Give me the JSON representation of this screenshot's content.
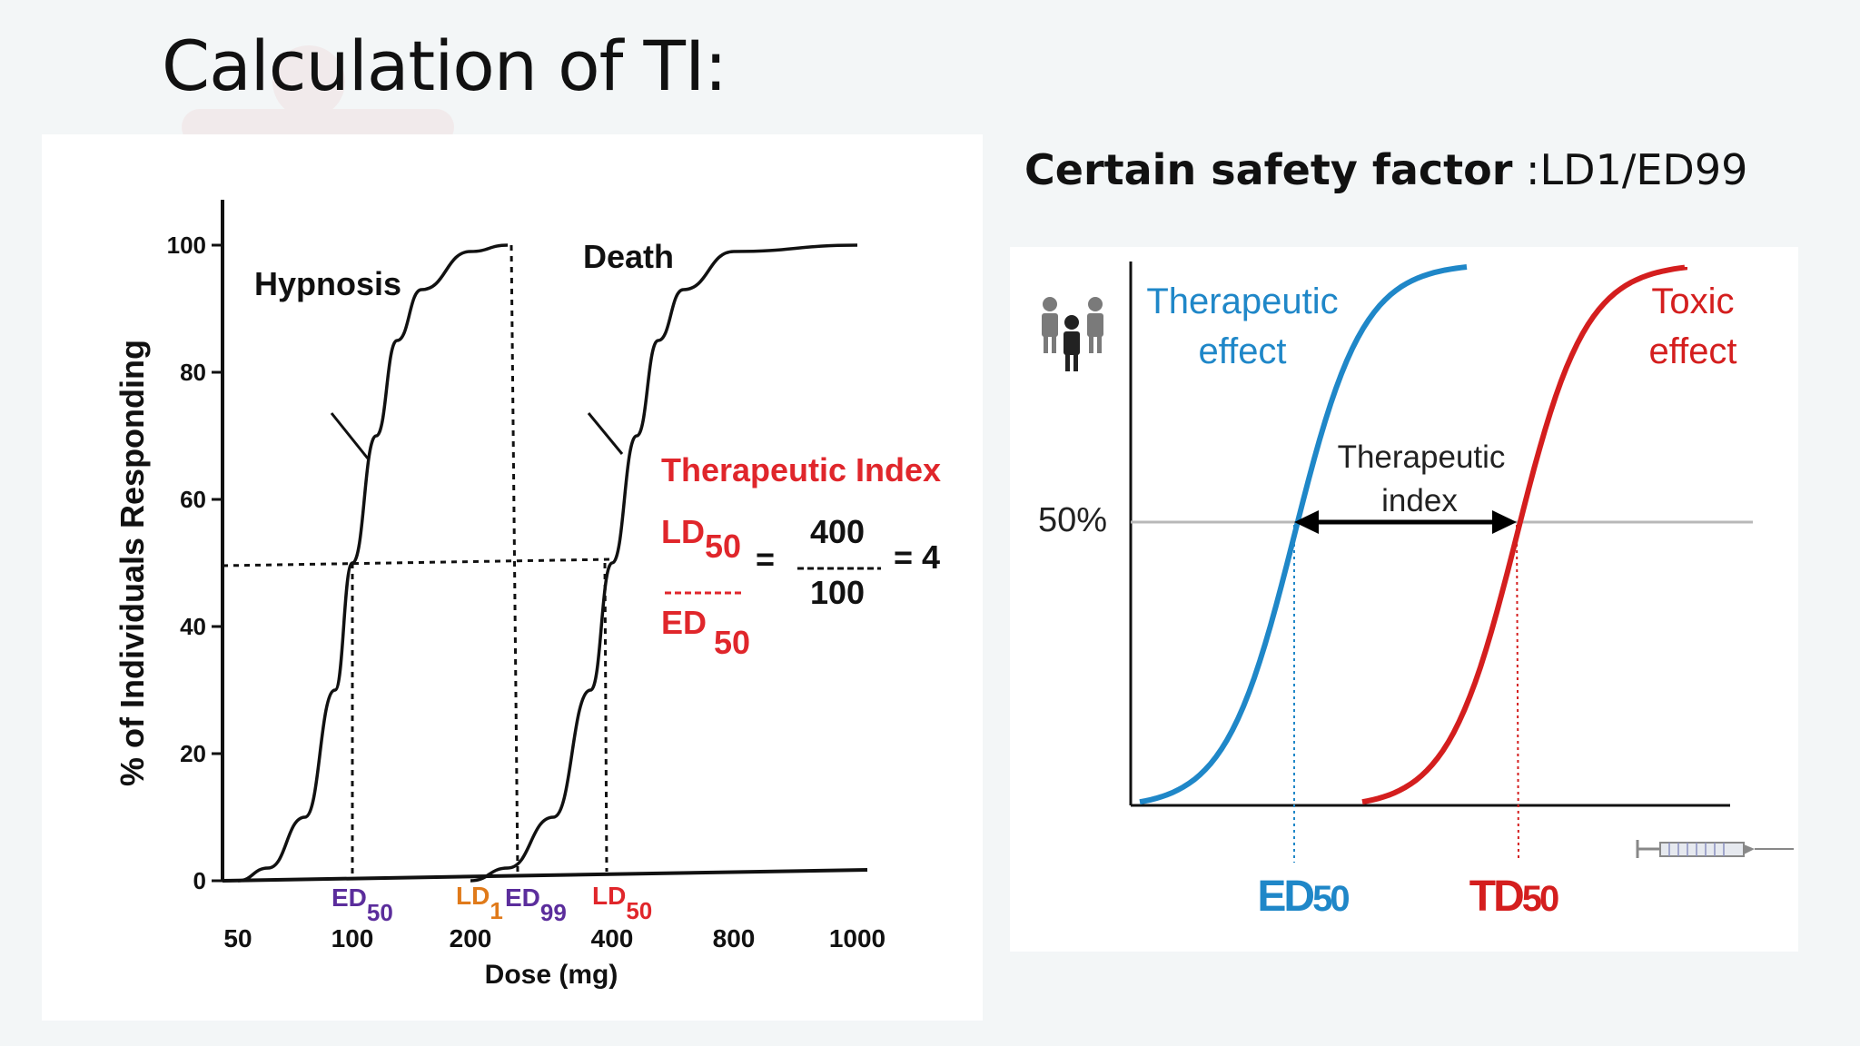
{
  "slide": {
    "title": "Calculation of TI:",
    "safety_label": "Certain safety factor",
    "safety_value": " :LD1/ED99"
  },
  "colors": {
    "therapeutic_blue": "#1f87c8",
    "toxic_red": "#d41e1e",
    "ti_red": "#e0262b",
    "ed_purple": "#5b2d9c",
    "ld_orange": "#e07a1a",
    "axis_black": "#111111"
  },
  "chart_data": [
    {
      "type": "line",
      "title": "",
      "xlabel": "Dose (mg)",
      "ylabel": "% of Individuals Responding",
      "x_scale": "log",
      "x_ticks": [
        "50",
        "100",
        "200",
        "400",
        "800",
        "1000"
      ],
      "y_ticks": [
        "0",
        "20",
        "40",
        "60",
        "80",
        "100"
      ],
      "ylim": [
        0,
        100
      ],
      "series": [
        {
          "name": "Hypnosis",
          "points": [
            [
              50,
              0
            ],
            [
              60,
              2
            ],
            [
              75,
              10
            ],
            [
              90,
              30
            ],
            [
              100,
              50
            ],
            [
              115,
              70
            ],
            [
              130,
              85
            ],
            [
              150,
              93
            ],
            [
              200,
              99
            ],
            [
              240,
              100
            ]
          ]
        },
        {
          "name": "Death",
          "points": [
            [
              200,
              0
            ],
            [
              240,
              2
            ],
            [
              300,
              10
            ],
            [
              360,
              30
            ],
            [
              400,
              50
            ],
            [
              460,
              70
            ],
            [
              520,
              85
            ],
            [
              600,
              93
            ],
            [
              800,
              99
            ],
            [
              1000,
              100
            ]
          ]
        }
      ],
      "reference_line": {
        "y": 50,
        "style": "dashed"
      },
      "annotations": [
        {
          "label": "ED",
          "sub": "50",
          "x": 100
        },
        {
          "label": "LD",
          "sub": "1",
          "x": 235
        },
        {
          "label": "ED",
          "sub": "99",
          "x": 235
        },
        {
          "label": "LD",
          "sub": "50",
          "x": 400
        }
      ],
      "formula": {
        "title": "Therapeutic Index",
        "num_label": "LD",
        "num_sub": "50",
        "den_label": "ED",
        "den_sub": "50",
        "num_value": "400",
        "den_value": "100",
        "result": "= 4",
        "eq": "="
      }
    },
    {
      "type": "line",
      "title": "",
      "series": [
        {
          "name": "Therapeutic effect",
          "line1": "Therapeutic",
          "line2": "effect",
          "color": "#1f87c8"
        },
        {
          "name": "Toxic effect",
          "line1": "Toxic",
          "line2": "effect",
          "color": "#d41e1e"
        }
      ],
      "reference_line": {
        "label": "50%"
      },
      "arrow_label_1": "Therapeutic",
      "arrow_label_2": "index",
      "markers": [
        {
          "label": "ED",
          "sub": "50",
          "color": "#1f87c8"
        },
        {
          "label": "TD",
          "sub": "50",
          "color": "#d41e1e"
        }
      ],
      "icons": [
        "people-icon",
        "syringe-icon"
      ]
    }
  ]
}
